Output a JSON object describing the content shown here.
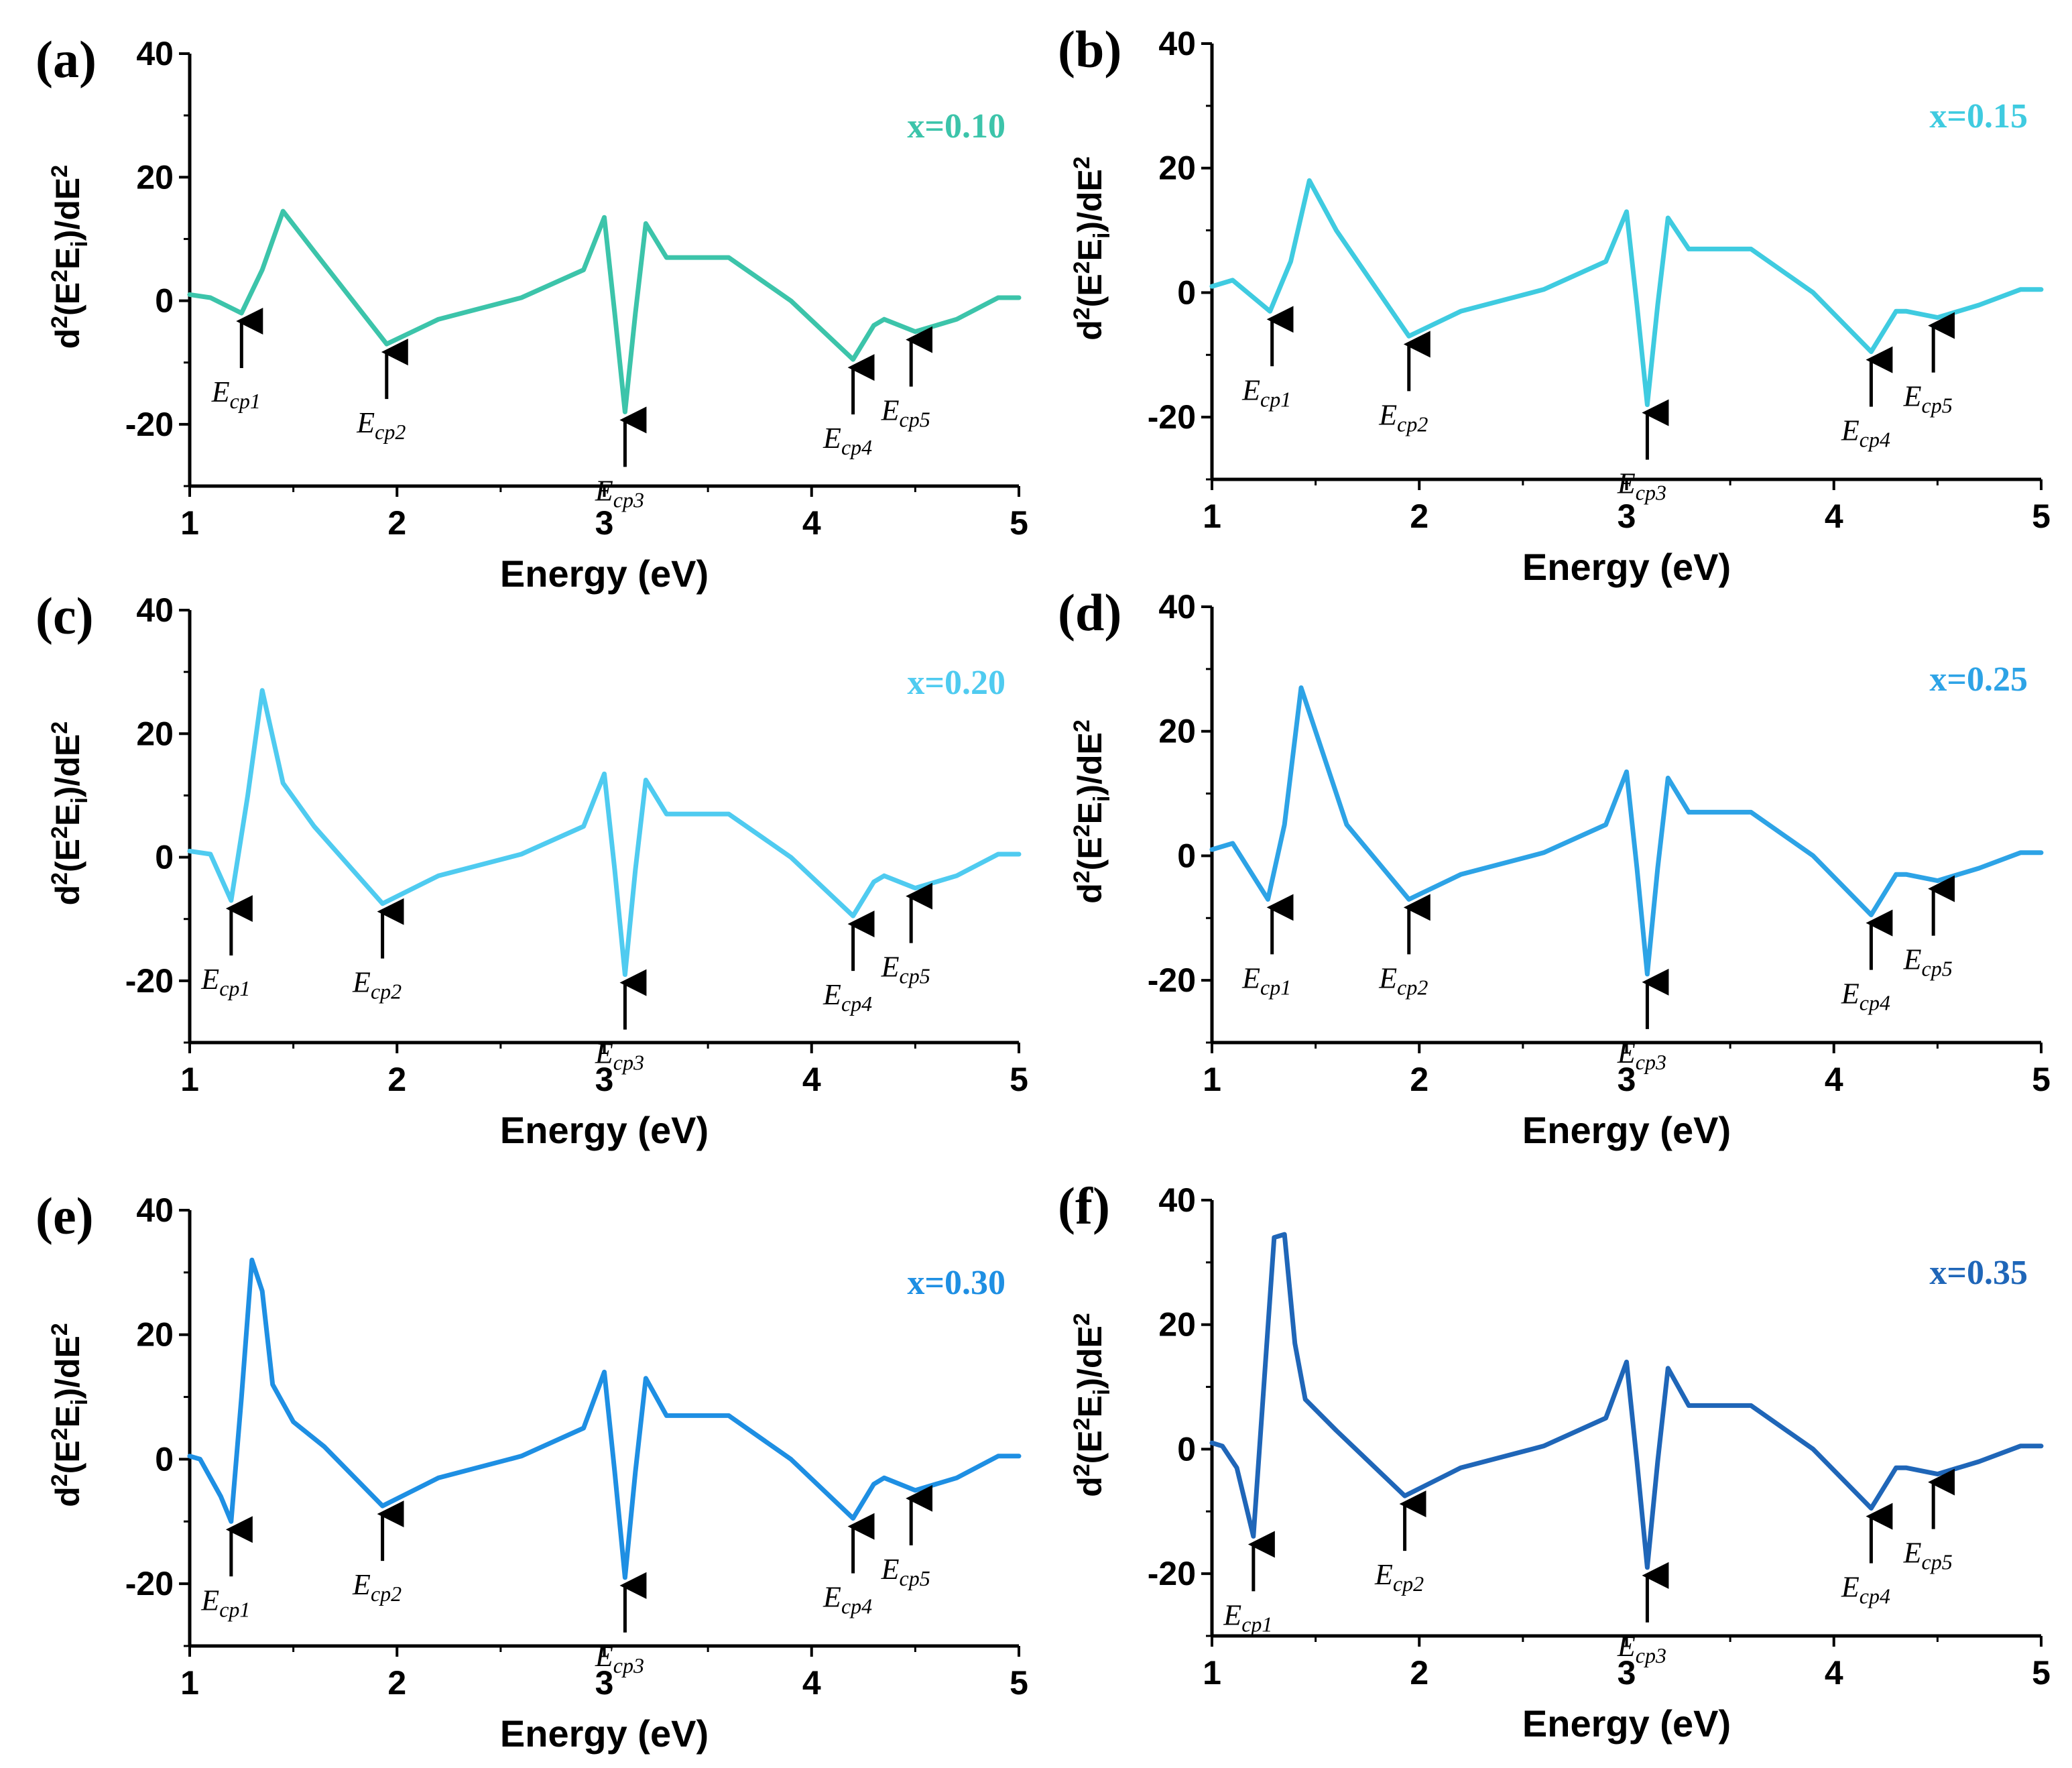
{
  "chart_data": [
    {
      "type": "line",
      "panel": "(a)",
      "series_label": "x=0.10",
      "color": "#3cc4aa",
      "xlabel": "Energy (eV)",
      "ylabel": {
        "prefix": "d",
        "sup1": "2",
        "mid": "(E",
        "sup2": "2",
        "e": "E",
        "sub": "i",
        "suffix": ")/dE",
        "sup3": "2"
      },
      "xlim": [
        1,
        5
      ],
      "ylim": [
        -30,
        40
      ],
      "xticks": [
        "1",
        "2",
        "3",
        "4",
        "5"
      ],
      "yticks": [
        "-20",
        "0",
        "20",
        "40"
      ],
      "x": [
        1.0,
        1.1,
        1.25,
        1.35,
        1.45,
        1.6,
        1.95,
        2.2,
        2.6,
        2.9,
        3.0,
        3.05,
        3.1,
        3.15,
        3.2,
        3.3,
        3.6,
        3.9,
        4.2,
        4.3,
        4.35,
        4.5,
        4.7,
        4.9,
        5.0
      ],
      "y": [
        1,
        0.5,
        -2,
        5,
        14.5,
        8,
        -7,
        -3,
        0.5,
        5,
        13.5,
        -2,
        -18,
        -2,
        12.5,
        7,
        7,
        0,
        -9.5,
        -4,
        -3,
        -5,
        -3,
        0.5,
        0.5
      ],
      "annotations": [
        {
          "label": "E",
          "sub": "cp1",
          "x": 1.25,
          "y": -2,
          "dir": "up"
        },
        {
          "label": "E",
          "sub": "cp2",
          "x": 1.95,
          "y": -7,
          "dir": "up"
        },
        {
          "label": "E",
          "sub": "cp3",
          "x": 3.1,
          "y": -18,
          "dir": "up"
        },
        {
          "label": "E",
          "sub": "cp4",
          "x": 4.2,
          "y": -9.5,
          "dir": "up"
        },
        {
          "label": "E",
          "sub": "cp5",
          "x": 4.48,
          "y": -5,
          "dir": "up"
        }
      ]
    },
    {
      "type": "line",
      "panel": "(b)",
      "series_label": "x=0.15",
      "color": "#3fcbe0",
      "xlabel": "Energy (eV)",
      "ylabel": {
        "prefix": "d",
        "sup1": "2",
        "mid": "(E",
        "sup2": "2",
        "e": "E",
        "sub": "i",
        "suffix": ")/dE",
        "sup3": "2"
      },
      "xlim": [
        1,
        5
      ],
      "ylim": [
        -30,
        40
      ],
      "xticks": [
        "1",
        "2",
        "3",
        "4",
        "5"
      ],
      "yticks": [
        "-20",
        "0",
        "20",
        "40"
      ],
      "x": [
        1.0,
        1.1,
        1.28,
        1.38,
        1.47,
        1.6,
        1.95,
        2.2,
        2.6,
        2.9,
        3.0,
        3.05,
        3.1,
        3.15,
        3.2,
        3.3,
        3.6,
        3.9,
        4.18,
        4.3,
        4.35,
        4.5,
        4.7,
        4.9,
        5.0
      ],
      "y": [
        1,
        2,
        -3,
        5,
        18,
        10,
        -7,
        -3,
        0.5,
        5,
        13,
        -2,
        -18,
        -2,
        12,
        7,
        7,
        0,
        -9.5,
        -3,
        -3,
        -4,
        -2,
        0.5,
        0.5
      ],
      "annotations": [
        {
          "label": "E",
          "sub": "cp1",
          "x": 1.29,
          "y": -3,
          "dir": "up"
        },
        {
          "label": "E",
          "sub": "cp2",
          "x": 1.95,
          "y": -7,
          "dir": "up"
        },
        {
          "label": "E",
          "sub": "cp3",
          "x": 3.1,
          "y": -18,
          "dir": "up"
        },
        {
          "label": "E",
          "sub": "cp4",
          "x": 4.18,
          "y": -9.5,
          "dir": "up"
        },
        {
          "label": "E",
          "sub": "cp5",
          "x": 4.48,
          "y": -4,
          "dir": "up"
        }
      ]
    },
    {
      "type": "line",
      "panel": "(c)",
      "series_label": "x=0.20",
      "color": "#4fcbf0",
      "xlabel": "Energy (eV)",
      "ylabel": {
        "prefix": "d",
        "sup1": "2",
        "mid": "(E",
        "sup2": "2",
        "e": "E",
        "sub": "i",
        "suffix": ")/dE",
        "sup3": "2"
      },
      "xlim": [
        1,
        5
      ],
      "ylim": [
        -30,
        40
      ],
      "xticks": [
        "1",
        "2",
        "3",
        "4",
        "5"
      ],
      "yticks": [
        "-20",
        "0",
        "20",
        "40"
      ],
      "x": [
        1.0,
        1.1,
        1.2,
        1.28,
        1.35,
        1.45,
        1.6,
        1.93,
        2.2,
        2.6,
        2.9,
        3.0,
        3.05,
        3.1,
        3.15,
        3.2,
        3.3,
        3.6,
        3.9,
        4.2,
        4.3,
        4.35,
        4.5,
        4.7,
        4.9,
        5.0
      ],
      "y": [
        1,
        0.5,
        -7,
        10,
        27,
        12,
        5,
        -7.5,
        -3,
        0.5,
        5,
        13.5,
        -2,
        -19,
        -2,
        12.5,
        7,
        7,
        0,
        -9.5,
        -4,
        -3,
        -5,
        -3,
        0.5,
        0.5
      ],
      "annotations": [
        {
          "label": "E",
          "sub": "cp1",
          "x": 1.2,
          "y": -7,
          "dir": "up"
        },
        {
          "label": "E",
          "sub": "cp2",
          "x": 1.93,
          "y": -7.5,
          "dir": "up"
        },
        {
          "label": "E",
          "sub": "cp3",
          "x": 3.1,
          "y": -19,
          "dir": "up"
        },
        {
          "label": "E",
          "sub": "cp4",
          "x": 4.2,
          "y": -9.5,
          "dir": "up"
        },
        {
          "label": "E",
          "sub": "cp5",
          "x": 4.48,
          "y": -5,
          "dir": "up"
        }
      ]
    },
    {
      "type": "line",
      "panel": "(d)",
      "series_label": "x=0.25",
      "color": "#2da3e6",
      "xlabel": "Energy (eV)",
      "ylabel": {
        "prefix": "d",
        "sup1": "2",
        "mid": "(E",
        "sup2": "2",
        "e": "E",
        "sub": "i",
        "suffix": ")/dE",
        "sup3": "2"
      },
      "xlim": [
        1,
        5
      ],
      "ylim": [
        -30,
        40
      ],
      "xticks": [
        "1",
        "2",
        "3",
        "4",
        "5"
      ],
      "yticks": [
        "-20",
        "0",
        "20",
        "40"
      ],
      "x": [
        1.0,
        1.1,
        1.27,
        1.35,
        1.43,
        1.5,
        1.65,
        1.95,
        2.2,
        2.6,
        2.9,
        3.0,
        3.05,
        3.1,
        3.15,
        3.2,
        3.3,
        3.6,
        3.9,
        4.18,
        4.3,
        4.35,
        4.5,
        4.7,
        4.9,
        5.0
      ],
      "y": [
        1,
        2,
        -7,
        5,
        27,
        20,
        5,
        -7,
        -3,
        0.5,
        5,
        13.5,
        -2,
        -19,
        -2,
        12.5,
        7,
        7,
        0,
        -9.5,
        -3,
        -3,
        -4,
        -2,
        0.5,
        0.5
      ],
      "annotations": [
        {
          "label": "E",
          "sub": "cp1",
          "x": 1.29,
          "y": -7,
          "dir": "up"
        },
        {
          "label": "E",
          "sub": "cp2",
          "x": 1.95,
          "y": -7,
          "dir": "up"
        },
        {
          "label": "E",
          "sub": "cp3",
          "x": 3.1,
          "y": -19,
          "dir": "up"
        },
        {
          "label": "E",
          "sub": "cp4",
          "x": 4.18,
          "y": -9.5,
          "dir": "up"
        },
        {
          "label": "E",
          "sub": "cp5",
          "x": 4.48,
          "y": -4,
          "dir": "up"
        }
      ]
    },
    {
      "type": "line",
      "panel": "(e)",
      "series_label": "x=0.30",
      "color": "#1e8fe3",
      "xlabel": "Energy (eV)",
      "ylabel": {
        "prefix": "d",
        "sup1": "2",
        "mid": "(E",
        "sup2": "2",
        "e": "E",
        "sub": "i",
        "suffix": ")/dE",
        "sup3": "2"
      },
      "xlim": [
        1,
        5
      ],
      "ylim": [
        -30,
        40
      ],
      "xticks": [
        "1",
        "2",
        "3",
        "4",
        "5"
      ],
      "yticks": [
        "-20",
        "0",
        "20",
        "40"
      ],
      "x": [
        1.0,
        1.05,
        1.15,
        1.2,
        1.25,
        1.3,
        1.35,
        1.4,
        1.5,
        1.65,
        1.93,
        2.2,
        2.6,
        2.9,
        3.0,
        3.05,
        3.1,
        3.15,
        3.2,
        3.3,
        3.6,
        3.9,
        4.2,
        4.3,
        4.35,
        4.5,
        4.7,
        4.9,
        5.0
      ],
      "y": [
        0.5,
        0,
        -6,
        -10,
        10,
        32,
        27,
        12,
        6,
        2,
        -7.5,
        -3,
        0.5,
        5,
        14,
        -2,
        -19,
        -2,
        13,
        7,
        7,
        0,
        -9.5,
        -4,
        -3,
        -5,
        -3,
        0.5,
        0.5
      ],
      "annotations": [
        {
          "label": "E",
          "sub": "cp1",
          "x": 1.2,
          "y": -10,
          "dir": "up"
        },
        {
          "label": "E",
          "sub": "cp2",
          "x": 1.93,
          "y": -7.5,
          "dir": "up"
        },
        {
          "label": "E",
          "sub": "cp3",
          "x": 3.1,
          "y": -19,
          "dir": "up"
        },
        {
          "label": "E",
          "sub": "cp4",
          "x": 4.2,
          "y": -9.5,
          "dir": "up"
        },
        {
          "label": "E",
          "sub": "cp5",
          "x": 4.48,
          "y": -5,
          "dir": "up"
        }
      ]
    },
    {
      "type": "line",
      "panel": "(f)",
      "series_label": "x=0.35",
      "color": "#1f66b8",
      "xlabel": "Energy (eV)",
      "ylabel": {
        "prefix": "d",
        "sup1": "2",
        "mid": "(E",
        "sup2": "2",
        "e": "E",
        "sub": "i",
        "suffix": ")/dE",
        "sup3": "2"
      },
      "xlim": [
        1,
        5
      ],
      "ylim": [
        -30,
        40
      ],
      "xticks": [
        "1",
        "2",
        "3",
        "4",
        "5"
      ],
      "yticks": [
        "-20",
        "0",
        "20",
        "40"
      ],
      "x": [
        1.0,
        1.05,
        1.12,
        1.2,
        1.25,
        1.3,
        1.35,
        1.4,
        1.45,
        1.6,
        1.93,
        2.2,
        2.6,
        2.9,
        3.0,
        3.05,
        3.1,
        3.15,
        3.2,
        3.3,
        3.6,
        3.9,
        4.18,
        4.3,
        4.35,
        4.5,
        4.7,
        4.9,
        5.0
      ],
      "y": [
        1,
        0.5,
        -3,
        -14,
        10,
        34,
        34.5,
        17,
        8,
        3,
        -7.5,
        -3,
        0.5,
        5,
        14,
        -2,
        -19,
        -2,
        13,
        7,
        7,
        0,
        -9.5,
        -3,
        -3,
        -4,
        -2,
        0.5,
        0.5
      ],
      "annotations": [
        {
          "label": "E",
          "sub": "cp1",
          "x": 1.2,
          "y": -14,
          "dir": "up"
        },
        {
          "label": "E",
          "sub": "cp2",
          "x": 1.93,
          "y": -7.5,
          "dir": "up"
        },
        {
          "label": "E",
          "sub": "cp3",
          "x": 3.1,
          "y": -19,
          "dir": "up"
        },
        {
          "label": "E",
          "sub": "cp4",
          "x": 4.18,
          "y": -9.5,
          "dir": "up"
        },
        {
          "label": "E",
          "sub": "cp5",
          "x": 4.48,
          "y": -4,
          "dir": "up"
        }
      ]
    }
  ]
}
